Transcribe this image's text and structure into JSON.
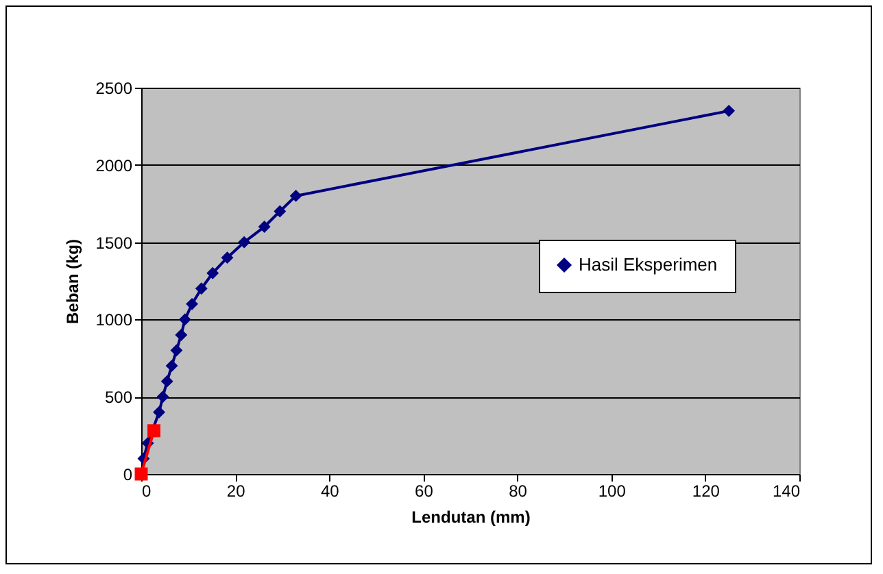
{
  "chart_data": {
    "type": "line",
    "xlabel": "Lendutan (mm)",
    "ylabel": "Beban (kg)",
    "xlim": [
      0,
      140
    ],
    "xticks": [
      0,
      20,
      40,
      60,
      80,
      100,
      120,
      140
    ],
    "ylim": [
      0,
      2500
    ],
    "yticks": [
      0,
      500,
      1000,
      1500,
      2000,
      2500
    ],
    "grid": "y",
    "legend": "right",
    "series": [
      {
        "name": "Hasil Eksperimen",
        "color": "#000080",
        "marker": "diamond",
        "x": [
          0.5,
          1.4,
          3.8,
          4.6,
          5.5,
          6.5,
          7.5,
          8.5,
          9.3,
          10.8,
          12.8,
          15.2,
          18.3,
          21.9,
          26.2,
          29.5,
          32.9,
          125
        ],
        "values": [
          100,
          200,
          400,
          500,
          600,
          700,
          800,
          900,
          1000,
          1100,
          1200,
          1300,
          1400,
          1500,
          1600,
          1700,
          1800,
          2350
        ]
      },
      {
        "color": "#ff0000",
        "marker": "square",
        "x": [
          0,
          2.7
        ],
        "values": [
          0,
          280
        ]
      }
    ]
  }
}
